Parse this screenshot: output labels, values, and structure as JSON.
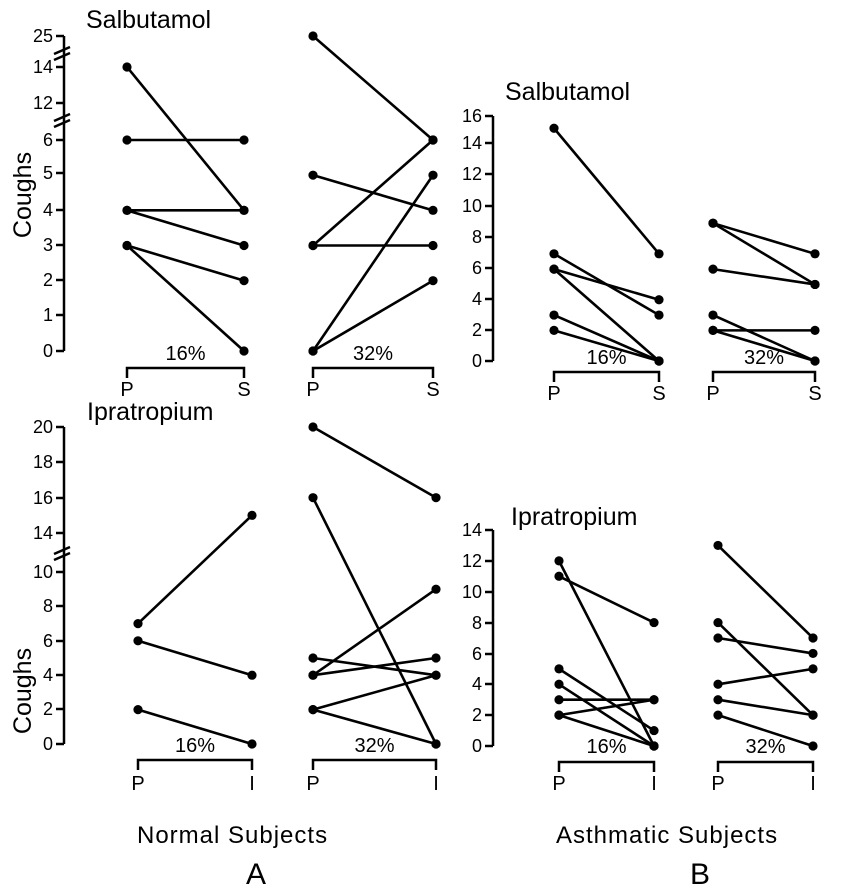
{
  "figure": {
    "group_a_label": "Normal  Subjects",
    "group_b_label": "Asthmatic  Subjects",
    "letter_a": "A",
    "letter_b": "B"
  },
  "chart_data": [
    {
      "id": "a_salbutamol",
      "type": "line",
      "title": "Salbutamol",
      "ylabel": "Coughs",
      "yticks": [
        "25",
        "14",
        "12",
        "6",
        "5",
        "4",
        "3",
        "2",
        "1",
        "0"
      ],
      "conditions": [
        "P",
        "S"
      ],
      "groups": [
        {
          "dose": "16%",
          "pairs": [
            [
              14,
              4
            ],
            [
              6,
              6
            ],
            [
              4,
              4
            ],
            [
              4,
              3
            ],
            [
              3,
              2
            ],
            [
              3,
              0
            ]
          ]
        },
        {
          "dose": "32%",
          "pairs": [
            [
              25,
              6
            ],
            [
              5,
              4
            ],
            [
              3,
              3
            ],
            [
              3,
              6
            ],
            [
              0,
              5
            ],
            [
              0,
              2
            ]
          ]
        }
      ]
    },
    {
      "id": "b_salbutamol",
      "type": "line",
      "title": "Salbutamol",
      "ylabel": "",
      "yticks": [
        "16",
        "14",
        "12",
        "10",
        "8",
        "6",
        "4",
        "2",
        "0"
      ],
      "conditions": [
        "P",
        "S"
      ],
      "groups": [
        {
          "dose": "16%",
          "pairs": [
            [
              15.2,
              7
            ],
            [
              7,
              3
            ],
            [
              6,
              4
            ],
            [
              6,
              0
            ],
            [
              3,
              0
            ],
            [
              2,
              0
            ]
          ]
        },
        {
          "dose": "32%",
          "pairs": [
            [
              9,
              7
            ],
            [
              9,
              5
            ],
            [
              6,
              5
            ],
            [
              3,
              0
            ],
            [
              2,
              2
            ],
            [
              2,
              0
            ]
          ]
        }
      ]
    },
    {
      "id": "a_ipratropium",
      "type": "line",
      "title": "Ipratropium",
      "ylabel": "Coughs",
      "yticks": [
        "20",
        "18",
        "16",
        "14",
        "10",
        "8",
        "6",
        "4",
        "2",
        "0"
      ],
      "conditions": [
        "P",
        "I"
      ],
      "groups": [
        {
          "dose": "16%",
          "pairs": [
            [
              7,
              15
            ],
            [
              6,
              4
            ],
            [
              2,
              0
            ]
          ]
        },
        {
          "dose": "32%",
          "pairs": [
            [
              20,
              16
            ],
            [
              16,
              0
            ],
            [
              5,
              4
            ],
            [
              4,
              9
            ],
            [
              4,
              5
            ],
            [
              2,
              4
            ],
            [
              2,
              0
            ]
          ]
        }
      ]
    },
    {
      "id": "b_ipratropium",
      "type": "line",
      "title": "Ipratropium",
      "ylabel": "",
      "yticks": [
        "14",
        "12",
        "10",
        "8",
        "6",
        "4",
        "2",
        "0"
      ],
      "conditions": [
        "P",
        "I"
      ],
      "groups": [
        {
          "dose": "16%",
          "pairs": [
            [
              12,
              0
            ],
            [
              11,
              8
            ],
            [
              5,
              1
            ],
            [
              4,
              0
            ],
            [
              3,
              3
            ],
            [
              2,
              3
            ],
            [
              2,
              0
            ]
          ]
        },
        {
          "dose": "32%",
          "pairs": [
            [
              13,
              7
            ],
            [
              8,
              2
            ],
            [
              7,
              6
            ],
            [
              4,
              5
            ],
            [
              3,
              2
            ],
            [
              2,
              0
            ]
          ]
        }
      ]
    }
  ]
}
